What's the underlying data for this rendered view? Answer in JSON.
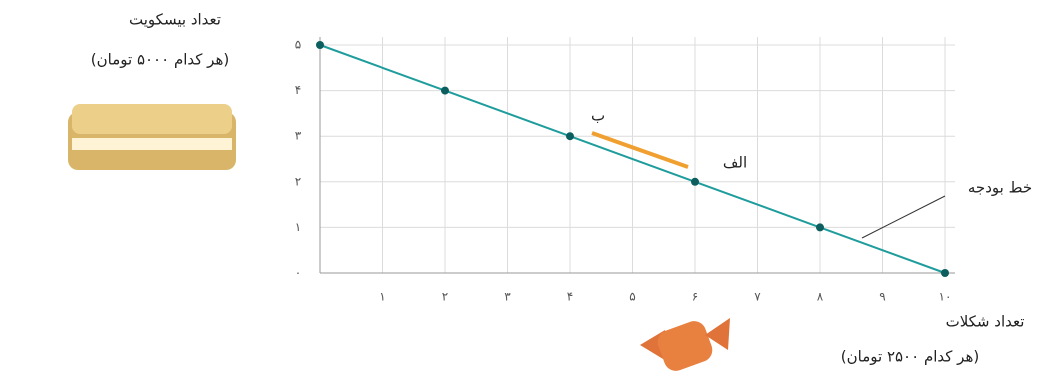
{
  "chart_data": {
    "type": "line",
    "ylabel": "تعداد بیسکویت",
    "ylabel_note": "(هر کدام ۵۰۰۰ تومان)",
    "xlabel": "تعداد شکلات",
    "xlabel_note": "(هر کدام ۲۵۰۰ تومان)",
    "annotations": [
      "ب",
      "الف",
      "خط بودجه"
    ],
    "x": [
      0,
      2,
      4,
      6,
      8,
      10
    ],
    "values": [
      5,
      4,
      3,
      2,
      1,
      0
    ],
    "color": "#1f9c9c",
    "xlim": [
      0,
      10
    ],
    "ylim": [
      0,
      5
    ],
    "xticks": [
      {
        "value": 1,
        "label": "۱"
      },
      {
        "value": 2,
        "label": "۲"
      },
      {
        "value": 3,
        "label": "۳"
      },
      {
        "value": 4,
        "label": "۴"
      },
      {
        "value": 5,
        "label": "۵"
      },
      {
        "value": 6,
        "label": "۶"
      },
      {
        "value": 7,
        "label": "۷"
      },
      {
        "value": 8,
        "label": "۸"
      },
      {
        "value": 9,
        "label": "۹"
      },
      {
        "value": 10,
        "label": "۱۰"
      }
    ],
    "yticks": [
      {
        "value": 0,
        "label": "۰"
      },
      {
        "value": 1,
        "label": "۱"
      },
      {
        "value": 2,
        "label": "۲"
      },
      {
        "value": 3,
        "label": "۳"
      },
      {
        "value": 4,
        "label": "۴"
      },
      {
        "value": 5,
        "label": "۵"
      }
    ],
    "grid": true
  }
}
